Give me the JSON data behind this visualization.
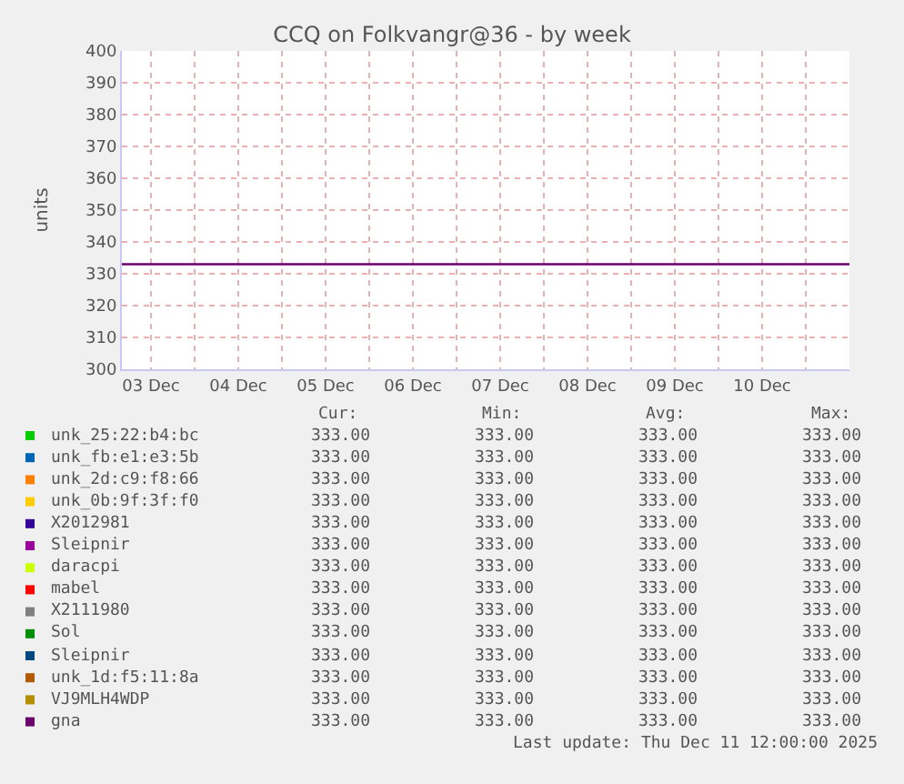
{
  "chart_data": {
    "type": "line",
    "title": "CCQ on Folkvangr@36 - by week",
    "ylabel": "units",
    "x": [
      "2025-12-03T04:00",
      "2025-12-11T12:00"
    ],
    "xlim": [
      "2025-12-03T04:00",
      "2025-12-11T12:00"
    ],
    "xticks": [
      {
        "value": "2025-12-03T12:00",
        "label": "03 Dec"
      },
      {
        "value": "2025-12-04T00:00",
        "label": null
      },
      {
        "value": "2025-12-04T12:00",
        "label": "04 Dec"
      },
      {
        "value": "2025-12-05T00:00",
        "label": null
      },
      {
        "value": "2025-12-05T12:00",
        "label": "05 Dec"
      },
      {
        "value": "2025-12-06T00:00",
        "label": null
      },
      {
        "value": "2025-12-06T12:00",
        "label": "06 Dec"
      },
      {
        "value": "2025-12-07T00:00",
        "label": null
      },
      {
        "value": "2025-12-07T12:00",
        "label": "07 Dec"
      },
      {
        "value": "2025-12-08T00:00",
        "label": null
      },
      {
        "value": "2025-12-08T12:00",
        "label": "08 Dec"
      },
      {
        "value": "2025-12-09T00:00",
        "label": null
      },
      {
        "value": "2025-12-09T12:00",
        "label": "09 Dec"
      },
      {
        "value": "2025-12-10T00:00",
        "label": null
      },
      {
        "value": "2025-12-10T12:00",
        "label": "10 Dec"
      },
      {
        "value": "2025-12-11T00:00",
        "label": null
      }
    ],
    "ylim": [
      300,
      400
    ],
    "yticks": [
      300,
      310,
      320,
      330,
      340,
      350,
      360,
      370,
      380,
      390,
      400
    ],
    "grid": true,
    "legend": "bottom",
    "marker": "none",
    "line_style": "solid",
    "series": [
      {
        "name": "unk_25:22:b4:bc",
        "color": "#00cc00",
        "values": [
          null,
          null
        ]
      },
      {
        "name": "unk_fb:e1:e3:5b",
        "color": "#0066b3",
        "values": [
          null,
          null
        ]
      },
      {
        "name": "unk_2d:c9:f8:66",
        "color": "#ff8000",
        "values": [
          null,
          null
        ]
      },
      {
        "name": "unk_0b:9f:3f:f0",
        "color": "#ffcc00",
        "values": [
          null,
          null
        ]
      },
      {
        "name": "X2012981",
        "color": "#330099",
        "values": [
          null,
          null
        ]
      },
      {
        "name": "Sleipnir",
        "color": "#990099",
        "values": [
          null,
          null
        ]
      },
      {
        "name": "daracpi",
        "color": "#ccff00",
        "values": [
          null,
          null
        ]
      },
      {
        "name": "mabel",
        "color": "#ff0000",
        "values": [
          null,
          null
        ]
      },
      {
        "name": "X2111980",
        "color": "#808080",
        "values": [
          null,
          null
        ]
      },
      {
        "name": "Sol",
        "color": "#008f00",
        "values": [
          null,
          null
        ]
      },
      {
        "name": "Sleipnir",
        "color": "#00487d",
        "values": [
          null,
          null
        ]
      },
      {
        "name": "unk_1d:f5:11:8a",
        "color": "#b35a00",
        "values": [
          null,
          null
        ]
      },
      {
        "name": "VJ9MLH4WDP",
        "color": "#b38f00",
        "values": [
          null,
          null
        ]
      },
      {
        "name": "gna",
        "color": "#6b006b",
        "values": [
          333,
          333
        ]
      }
    ],
    "annotations": [
      "Cur:",
      "Min:",
      "Avg:",
      "Max:",
      "333.00",
      "333.00",
      "333.00",
      "333.00",
      "333.00",
      "333.00",
      "333.00",
      "333.00",
      "333.00",
      "333.00",
      "333.00",
      "333.00",
      "333.00",
      "333.00",
      "333.00",
      "333.00",
      "333.00",
      "333.00",
      "333.00",
      "333.00",
      "333.00",
      "333.00",
      "333.00",
      "333.00",
      "333.00",
      "333.00",
      "333.00",
      "333.00",
      "333.00",
      "333.00",
      "333.00",
      "333.00",
      "333.00",
      "333.00",
      "333.00",
      "333.00",
      "333.00",
      "333.00",
      "333.00",
      "333.00",
      "333.00",
      "333.00",
      "333.00",
      "333.00",
      "333.00",
      "333.00",
      "333.00",
      "333.00",
      "333.00",
      "333.00",
      "333.00",
      "333.00",
      "333.00",
      "333.00",
      "333.00",
      "333.00",
      "Last update: Thu Dec 11 12:00:00 2025"
    ]
  }
}
